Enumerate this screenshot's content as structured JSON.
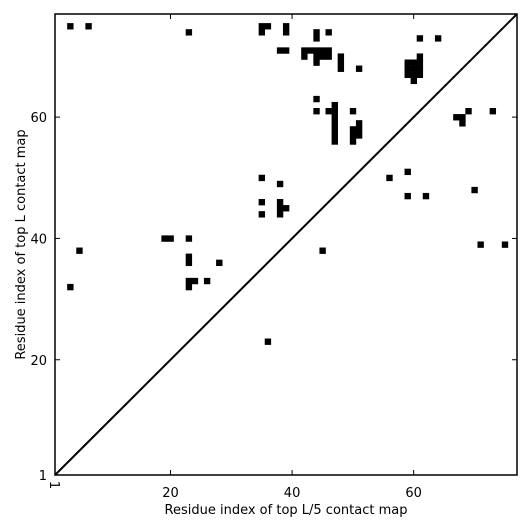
{
  "chart_data": {
    "type": "scatter",
    "title": "",
    "xlabel": "Residue index of top L/5 contact map",
    "ylabel": "Residue index of top L contact map",
    "xlim": [
      1,
      77
    ],
    "ylim": [
      1,
      77
    ],
    "xticks": [
      1,
      20,
      40,
      60
    ],
    "yticks": [
      1,
      20,
      40,
      60
    ],
    "grid": false,
    "legend": "none",
    "marker": "square",
    "color": "#000000",
    "diagonal": {
      "from": [
        1,
        1
      ],
      "to": [
        77,
        77
      ]
    },
    "points_above_diagonal": [
      [
        3.5,
        75
      ],
      [
        6.5,
        75
      ],
      [
        23,
        74
      ],
      [
        35,
        75
      ],
      [
        36,
        75
      ],
      [
        35,
        74
      ],
      [
        39,
        75
      ],
      [
        39,
        74
      ],
      [
        38,
        71
      ],
      [
        39,
        71
      ],
      [
        44,
        74
      ],
      [
        44,
        73
      ],
      [
        46,
        74
      ],
      [
        42,
        71
      ],
      [
        43,
        71
      ],
      [
        44,
        71
      ],
      [
        45,
        71
      ],
      [
        46,
        71
      ],
      [
        42,
        70
      ],
      [
        44,
        70
      ],
      [
        45,
        70
      ],
      [
        46,
        70
      ],
      [
        44,
        69
      ],
      [
        48,
        70
      ],
      [
        48,
        69
      ],
      [
        48,
        68
      ],
      [
        51,
        68
      ],
      [
        61,
        73
      ],
      [
        64,
        73
      ],
      [
        61,
        70
      ],
      [
        59,
        69
      ],
      [
        60,
        69
      ],
      [
        61,
        69
      ],
      [
        59,
        68
      ],
      [
        60,
        68
      ],
      [
        61,
        68
      ],
      [
        59,
        67
      ],
      [
        60,
        67
      ],
      [
        61,
        67
      ],
      [
        60,
        66
      ],
      [
        44,
        63
      ],
      [
        44,
        61
      ],
      [
        46,
        61
      ],
      [
        47,
        62
      ],
      [
        47,
        61
      ],
      [
        47,
        60
      ],
      [
        47,
        59
      ],
      [
        47,
        58
      ],
      [
        47,
        57
      ],
      [
        47,
        56
      ],
      [
        50,
        61
      ],
      [
        51,
        59
      ],
      [
        50,
        58
      ],
      [
        51,
        58
      ],
      [
        50,
        57
      ],
      [
        51,
        57
      ],
      [
        50,
        56
      ],
      [
        67,
        60
      ],
      [
        68,
        60
      ],
      [
        68,
        59
      ],
      [
        69,
        61
      ],
      [
        73,
        61
      ],
      [
        35,
        50
      ],
      [
        38,
        49
      ],
      [
        56,
        50
      ],
      [
        59,
        51
      ],
      [
        59,
        47
      ],
      [
        62,
        47
      ],
      [
        70,
        48
      ],
      [
        35,
        46
      ],
      [
        38,
        46
      ],
      [
        38,
        45
      ],
      [
        39,
        45
      ],
      [
        35,
        44
      ],
      [
        38,
        44
      ],
      [
        19,
        40
      ],
      [
        20,
        40
      ],
      [
        23,
        40
      ],
      [
        5,
        38
      ],
      [
        45,
        38
      ],
      [
        71,
        39
      ],
      [
        75,
        39
      ],
      [
        23,
        37
      ],
      [
        23,
        36
      ],
      [
        28,
        36
      ],
      [
        3.5,
        32
      ],
      [
        23,
        33
      ],
      [
        24,
        33
      ],
      [
        26,
        33
      ],
      [
        23,
        32
      ],
      [
        36,
        23
      ]
    ]
  }
}
